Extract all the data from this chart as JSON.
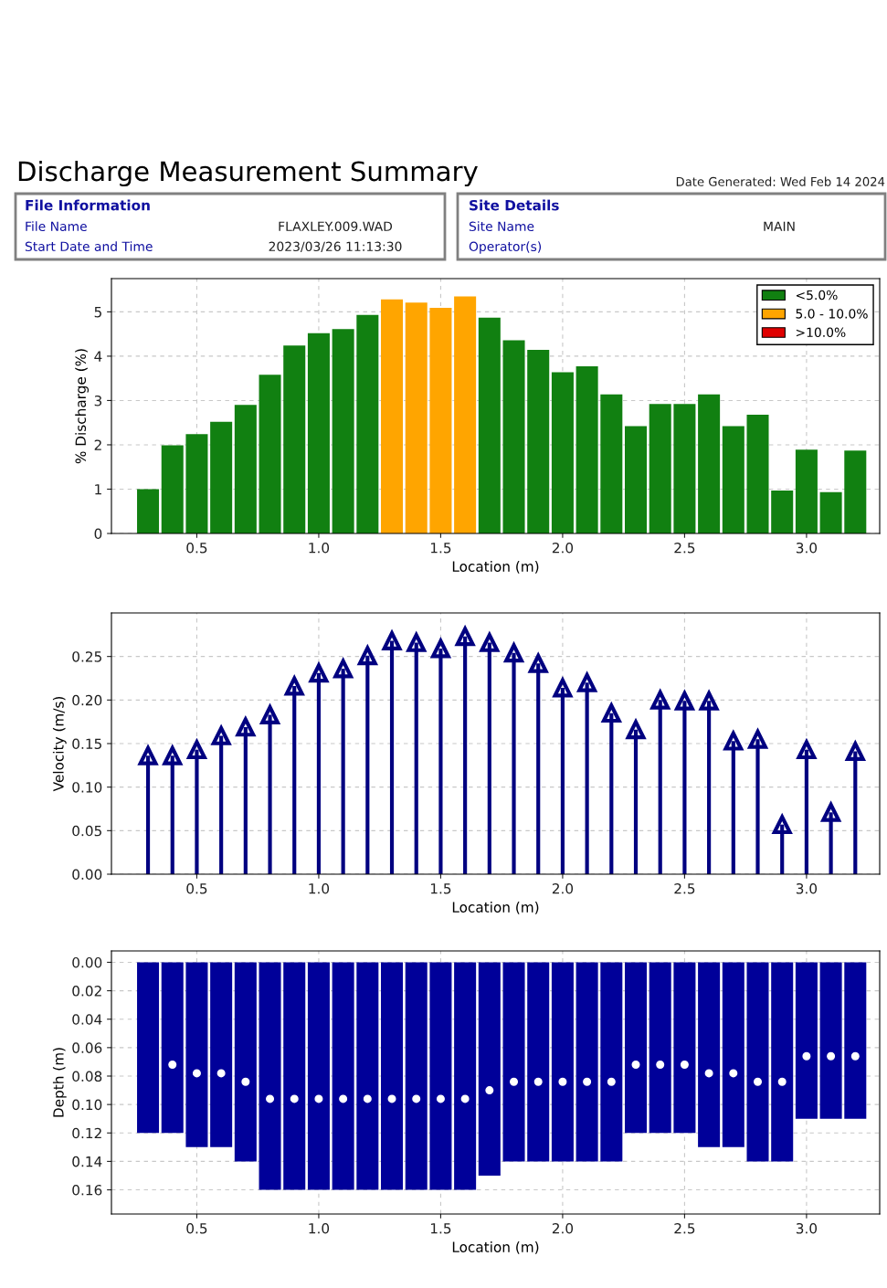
{
  "chart_data": [
    {
      "type": "other",
      "title": "Discharge Measurement Summary",
      "annotations": [
        "Date Generated: Wed Feb 14 2024",
        "File Information",
        "File Name",
        "FLAXLEY.009.WAD",
        "Start Date and Time",
        "2023/03/26 11:13:30",
        "Site Details",
        "Site Name",
        "MAIN",
        "Operator(s)"
      ]
    },
    {
      "type": "bar",
      "xlabel": "Location (m)",
      "ylabel": "% Discharge (%)",
      "x": [
        0.3,
        0.4,
        0.5,
        0.6,
        0.7,
        0.8,
        0.9,
        1.0,
        1.1,
        1.2,
        1.3,
        1.4,
        1.5,
        1.6,
        1.7,
        1.8,
        1.9,
        2.0,
        2.1,
        2.2,
        2.3,
        2.4,
        2.5,
        2.6,
        2.7,
        2.8,
        2.9,
        3.0,
        3.1,
        3.2
      ],
      "series": [
        {
          "name": "<5.0%",
          "color": "#118011",
          "values": [
            1.0,
            1.99,
            2.24,
            2.52,
            2.9,
            3.58,
            4.24,
            4.52,
            4.61,
            4.93,
            null,
            null,
            null,
            null,
            4.87,
            4.36,
            4.14,
            3.64,
            3.77,
            3.14,
            2.42,
            2.92,
            2.92,
            3.14,
            2.42,
            2.68,
            0.97,
            1.89,
            0.93,
            1.87
          ]
        },
        {
          "name": "5.0 - 10.0%",
          "color": "#ffa500",
          "values": [
            null,
            null,
            null,
            null,
            null,
            null,
            null,
            null,
            null,
            null,
            5.28,
            5.21,
            5.09,
            5.35,
            null,
            null,
            null,
            null,
            null,
            null,
            null,
            null,
            null,
            null,
            null,
            null,
            null,
            null,
            null,
            null
          ]
        },
        {
          "name": ">10.0%",
          "color": "#e00000",
          "values": [
            null,
            null,
            null,
            null,
            null,
            null,
            null,
            null,
            null,
            null,
            null,
            null,
            null,
            null,
            null,
            null,
            null,
            null,
            null,
            null,
            null,
            null,
            null,
            null,
            null,
            null,
            null,
            null,
            null,
            null
          ]
        }
      ],
      "xlim": [
        0.15,
        3.3
      ],
      "xticks": [
        {
          "value": 0.5,
          "label": "0.5"
        },
        {
          "value": 1.0,
          "label": "1.0"
        },
        {
          "value": 1.5,
          "label": "1.5"
        },
        {
          "value": 2.0,
          "label": "2.0"
        },
        {
          "value": 2.5,
          "label": "2.5"
        },
        {
          "value": 3.0,
          "label": "3.0"
        }
      ],
      "ylim": [
        0,
        5.75
      ],
      "yticks": [
        0,
        1,
        2,
        3,
        4,
        5
      ],
      "grid": true,
      "legend": "top right"
    },
    {
      "type": "lollipop",
      "xlabel": "Location (m)",
      "ylabel": "Velocity (m/s)",
      "marker": "triangle",
      "x": [
        0.3,
        0.4,
        0.5,
        0.6,
        0.7,
        0.8,
        0.9,
        1.0,
        1.1,
        1.2,
        1.3,
        1.4,
        1.5,
        1.6,
        1.7,
        1.8,
        1.9,
        2.0,
        2.1,
        2.2,
        2.3,
        2.4,
        2.5,
        2.6,
        2.7,
        2.8,
        2.9,
        3.0,
        3.1,
        3.2
      ],
      "series": [
        {
          "color": "#000080",
          "values": [
            0.136,
            0.136,
            0.143,
            0.159,
            0.169,
            0.183,
            0.216,
            0.231,
            0.236,
            0.251,
            0.268,
            0.266,
            0.259,
            0.273,
            0.266,
            0.254,
            0.242,
            0.214,
            0.22,
            0.185,
            0.166,
            0.2,
            0.199,
            0.199,
            0.153,
            0.155,
            0.057,
            0.143,
            0.071,
            0.141
          ]
        }
      ],
      "xlim": [
        0.15,
        3.3
      ],
      "xticks": [
        {
          "value": 0.5,
          "label": "0.5"
        },
        {
          "value": 1.0,
          "label": "1.0"
        },
        {
          "value": 1.5,
          "label": "1.5"
        },
        {
          "value": 2.0,
          "label": "2.0"
        },
        {
          "value": 2.5,
          "label": "2.5"
        },
        {
          "value": 3.0,
          "label": "3.0"
        }
      ],
      "ylim": [
        0,
        0.3
      ],
      "yticks": [
        {
          "value": 0,
          "label": "0.00"
        },
        {
          "value": 0.05,
          "label": "0.05"
        },
        {
          "value": 0.1,
          "label": "0.10"
        },
        {
          "value": 0.15,
          "label": "0.15"
        },
        {
          "value": 0.2,
          "label": "0.20"
        },
        {
          "value": 0.25,
          "label": "0.25"
        }
      ],
      "grid": true
    },
    {
      "type": "bar",
      "xlabel": "Location (m)",
      "ylabel": "Depth (m)",
      "marker": "circle",
      "x": [
        0.3,
        0.4,
        0.5,
        0.6,
        0.7,
        0.8,
        0.9,
        1.0,
        1.1,
        1.2,
        1.3,
        1.4,
        1.5,
        1.6,
        1.7,
        1.8,
        1.9,
        2.0,
        2.1,
        2.2,
        2.3,
        2.4,
        2.5,
        2.6,
        2.7,
        2.8,
        2.9,
        3.0,
        3.1,
        3.2
      ],
      "series": [
        {
          "type": "bar",
          "color": "#000099",
          "values": [
            0.12,
            0.12,
            0.13,
            0.13,
            0.14,
            0.16,
            0.16,
            0.16,
            0.16,
            0.16,
            0.16,
            0.16,
            0.16,
            0.16,
            0.15,
            0.14,
            0.14,
            0.14,
            0.14,
            0.14,
            0.12,
            0.12,
            0.12,
            0.13,
            0.13,
            0.14,
            0.14,
            0.11,
            0.11,
            0.11
          ]
        },
        {
          "type": "scatter",
          "color": "#ffffff",
          "values": [
            null,
            0.072,
            0.078,
            0.078,
            0.084,
            0.096,
            0.096,
            0.096,
            0.096,
            0.096,
            0.096,
            0.096,
            0.096,
            0.096,
            0.09,
            0.084,
            0.084,
            0.084,
            0.084,
            0.084,
            0.072,
            0.072,
            0.072,
            0.078,
            0.078,
            0.084,
            0.084,
            0.066,
            0.066,
            0.066
          ]
        }
      ],
      "xlim": [
        0.15,
        3.3
      ],
      "xticks": [
        {
          "value": 0.5,
          "label": "0.5"
        },
        {
          "value": 1.0,
          "label": "1.0"
        },
        {
          "value": 1.5,
          "label": "1.5"
        },
        {
          "value": 2.0,
          "label": "2.0"
        },
        {
          "value": 2.5,
          "label": "2.5"
        },
        {
          "value": 3.0,
          "label": "3.0"
        }
      ],
      "ylim": [
        0.177,
        -0.008
      ],
      "yticks": [
        {
          "value": 0,
          "label": "0.00"
        },
        {
          "value": 0.02,
          "label": "0.02"
        },
        {
          "value": 0.04,
          "label": "0.04"
        },
        {
          "value": 0.06,
          "label": "0.06"
        },
        {
          "value": 0.08,
          "label": "0.08"
        },
        {
          "value": 0.1,
          "label": "0.10"
        },
        {
          "value": 0.12,
          "label": "0.12"
        },
        {
          "value": 0.14,
          "label": "0.14"
        },
        {
          "value": 0.16,
          "label": "0.16"
        }
      ],
      "grid": true
    }
  ]
}
